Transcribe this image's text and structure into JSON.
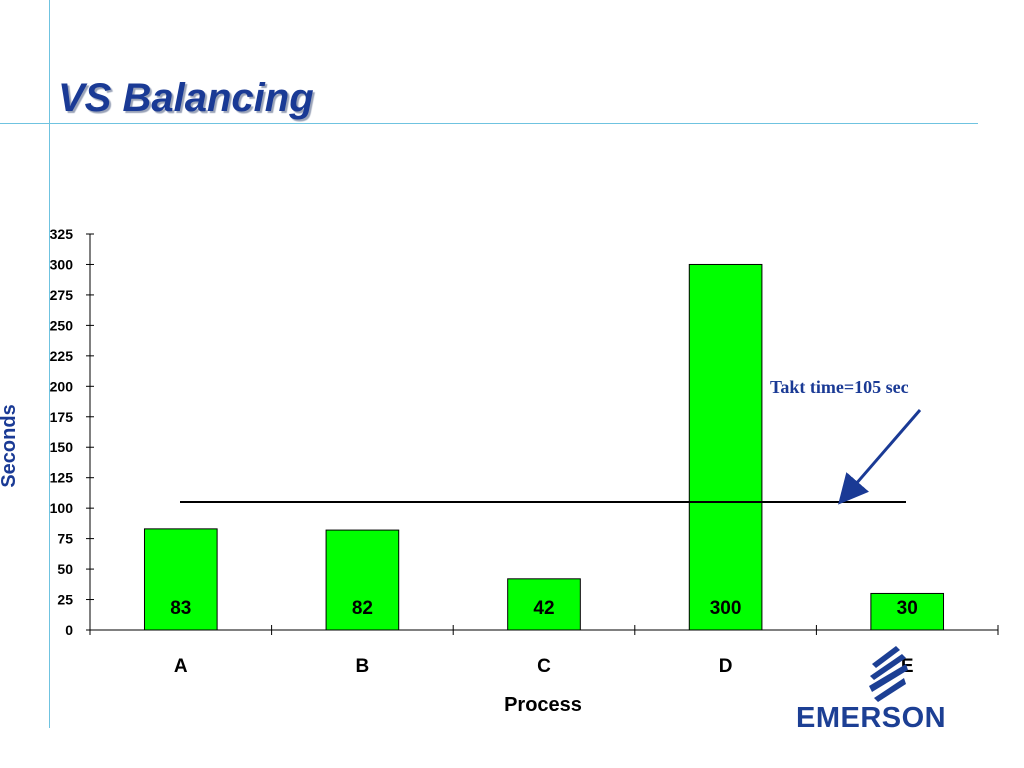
{
  "title": "VS Balancing",
  "logo": {
    "text": "EMERSON",
    "color": "#1c3f94"
  },
  "colors": {
    "bar": "#00ff00",
    "title": "#1a3a95",
    "guide": "#6fc3e0",
    "annotation": "#1a3a95"
  },
  "chart_data": {
    "type": "bar",
    "categories": [
      "A",
      "B",
      "C",
      "D",
      "E"
    ],
    "values": [
      83,
      82,
      42,
      300,
      30
    ],
    "data_labels": [
      "83",
      "82",
      "42",
      "300",
      "30"
    ],
    "xlabel": "Process",
    "ylabel": "Seconds",
    "ylim": [
      0,
      325
    ],
    "yticks": [
      0,
      25,
      50,
      75,
      100,
      125,
      150,
      175,
      200,
      225,
      250,
      275,
      300,
      325
    ],
    "reference_line": {
      "value": 105,
      "label": "Takt time=105 sec"
    },
    "grid": false,
    "legend": "none"
  }
}
